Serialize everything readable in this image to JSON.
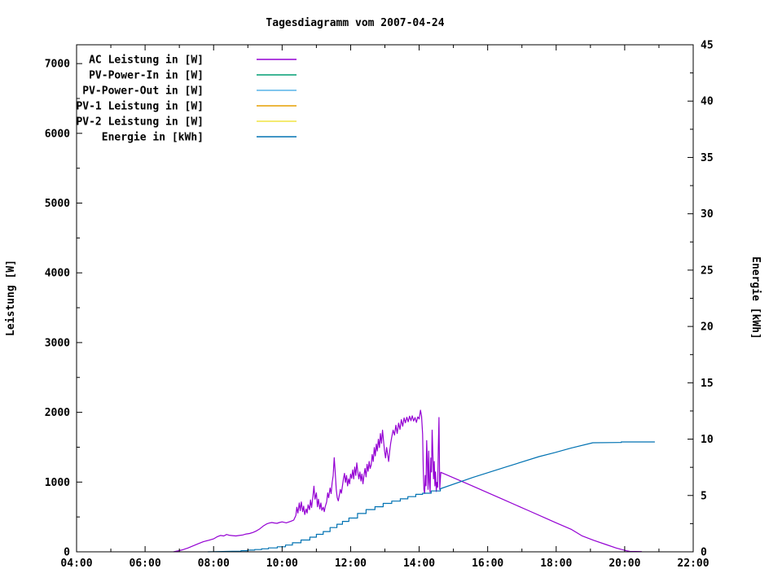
{
  "page": {
    "background": "#ffffff",
    "foreground": "#000000"
  },
  "chart_data": {
    "type": "line",
    "title": "Tagesdiagramm vom 2007-04-24",
    "x_axis": {
      "tick_labels": [
        "04:00",
        "06:00",
        "08:00",
        "10:00",
        "12:00",
        "14:00",
        "16:00",
        "18:00",
        "20:00",
        "22:00"
      ],
      "range_hours": [
        4,
        22
      ],
      "major_step_hours": 2,
      "minor_step_hours": 1,
      "grid": false
    },
    "y_left_axis": {
      "label": "Leistung [W]",
      "tick_labels": [
        "0",
        "1000",
        "2000",
        "3000",
        "4000",
        "5000",
        "6000",
        "7000"
      ],
      "tick_values": [
        0,
        1000,
        2000,
        3000,
        4000,
        5000,
        6000,
        7000
      ],
      "minor_step": 500,
      "range": [
        0,
        7270
      ]
    },
    "y_right_axis": {
      "label": "Energie [kWh]",
      "tick_labels": [
        "0",
        "5",
        "10",
        "15",
        "20",
        "25",
        "30",
        "35",
        "40",
        "45"
      ],
      "tick_values": [
        0,
        5,
        10,
        15,
        20,
        25,
        30,
        35,
        40,
        45
      ],
      "minor_step": 2.5,
      "range": [
        0,
        45
      ]
    },
    "legend_position": "top-left-inside",
    "series": [
      {
        "name": "AC Leistung in [W]",
        "color": "#9400d3",
        "axis": "left",
        "style": "line",
        "points": [
          [
            6.83,
            0
          ],
          [
            7.0,
            18
          ],
          [
            7.1,
            30
          ],
          [
            7.25,
            55
          ],
          [
            7.4,
            85
          ],
          [
            7.55,
            115
          ],
          [
            7.7,
            145
          ],
          [
            7.85,
            165
          ],
          [
            8.0,
            185
          ],
          [
            8.1,
            215
          ],
          [
            8.2,
            235
          ],
          [
            8.3,
            228
          ],
          [
            8.38,
            248
          ],
          [
            8.45,
            238
          ],
          [
            8.55,
            232
          ],
          [
            8.65,
            228
          ],
          [
            8.75,
            235
          ],
          [
            8.85,
            242
          ],
          [
            8.95,
            255
          ],
          [
            9.05,
            262
          ],
          [
            9.15,
            278
          ],
          [
            9.25,
            300
          ],
          [
            9.35,
            330
          ],
          [
            9.45,
            370
          ],
          [
            9.55,
            400
          ],
          [
            9.62,
            412
          ],
          [
            9.7,
            420
          ],
          [
            9.78,
            413
          ],
          [
            9.85,
            408
          ],
          [
            9.92,
            420
          ],
          [
            10.0,
            430
          ],
          [
            10.06,
            422
          ],
          [
            10.12,
            416
          ],
          [
            10.2,
            428
          ],
          [
            10.28,
            442
          ],
          [
            10.34,
            455
          ],
          [
            10.4,
            520
          ],
          [
            10.43,
            640
          ],
          [
            10.46,
            555
          ],
          [
            10.5,
            700
          ],
          [
            10.53,
            590
          ],
          [
            10.56,
            715
          ],
          [
            10.6,
            575
          ],
          [
            10.63,
            655
          ],
          [
            10.66,
            535
          ],
          [
            10.7,
            615
          ],
          [
            10.73,
            555
          ],
          [
            10.76,
            675
          ],
          [
            10.8,
            605
          ],
          [
            10.83,
            745
          ],
          [
            10.86,
            635
          ],
          [
            10.9,
            800
          ],
          [
            10.93,
            940
          ],
          [
            10.96,
            755
          ],
          [
            11.0,
            845
          ],
          [
            11.03,
            645
          ],
          [
            11.06,
            755
          ],
          [
            11.1,
            615
          ],
          [
            11.13,
            700
          ],
          [
            11.16,
            595
          ],
          [
            11.2,
            640
          ],
          [
            11.23,
            575
          ],
          [
            11.26,
            650
          ],
          [
            11.3,
            715
          ],
          [
            11.33,
            845
          ],
          [
            11.36,
            775
          ],
          [
            11.4,
            915
          ],
          [
            11.43,
            835
          ],
          [
            11.46,
            985
          ],
          [
            11.49,
            1090
          ],
          [
            11.52,
            1350
          ],
          [
            11.55,
            1145
          ],
          [
            11.58,
            895
          ],
          [
            11.61,
            775
          ],
          [
            11.64,
            730
          ],
          [
            11.67,
            815
          ],
          [
            11.7,
            895
          ],
          [
            11.73,
            840
          ],
          [
            11.76,
            945
          ],
          [
            11.79,
            1045
          ],
          [
            11.82,
            1125
          ],
          [
            11.85,
            995
          ],
          [
            11.88,
            1095
          ],
          [
            11.91,
            945
          ],
          [
            11.94,
            1045
          ],
          [
            11.97,
            975
          ],
          [
            12.0,
            1115
          ],
          [
            12.03,
            1055
          ],
          [
            12.06,
            1175
          ],
          [
            12.09,
            1045
          ],
          [
            12.12,
            1215
          ],
          [
            12.15,
            1095
          ],
          [
            12.18,
            1275
          ],
          [
            12.21,
            1145
          ],
          [
            12.24,
            1045
          ],
          [
            12.27,
            1145
          ],
          [
            12.3,
            1015
          ],
          [
            12.33,
            1115
          ],
          [
            12.36,
            975
          ],
          [
            12.39,
            1095
          ],
          [
            12.42,
            1195
          ],
          [
            12.45,
            1075
          ],
          [
            12.48,
            1255
          ],
          [
            12.51,
            1155
          ],
          [
            12.54,
            1295
          ],
          [
            12.57,
            1195
          ],
          [
            12.6,
            1245
          ],
          [
            12.63,
            1395
          ],
          [
            12.66,
            1295
          ],
          [
            12.69,
            1495
          ],
          [
            12.72,
            1375
          ],
          [
            12.75,
            1545
          ],
          [
            12.78,
            1445
          ],
          [
            12.81,
            1615
          ],
          [
            12.84,
            1495
          ],
          [
            12.87,
            1695
          ],
          [
            12.9,
            1555
          ],
          [
            12.93,
            1745
          ],
          [
            12.96,
            1595
          ],
          [
            12.99,
            1445
          ],
          [
            13.02,
            1345
          ],
          [
            13.05,
            1495
          ],
          [
            13.08,
            1395
          ],
          [
            13.11,
            1295
          ],
          [
            13.14,
            1445
          ],
          [
            13.17,
            1555
          ],
          [
            13.2,
            1645
          ],
          [
            13.24,
            1745
          ],
          [
            13.28,
            1675
          ],
          [
            13.32,
            1815
          ],
          [
            13.36,
            1698
          ],
          [
            13.4,
            1845
          ],
          [
            13.44,
            1755
          ],
          [
            13.48,
            1895
          ],
          [
            13.52,
            1800
          ],
          [
            13.56,
            1920
          ],
          [
            13.6,
            1850
          ],
          [
            13.64,
            1930
          ],
          [
            13.68,
            1865
          ],
          [
            13.72,
            1945
          ],
          [
            13.76,
            1880
          ],
          [
            13.8,
            1950
          ],
          [
            13.84,
            1875
          ],
          [
            13.88,
            1925
          ],
          [
            13.92,
            1855
          ],
          [
            13.96,
            1935
          ],
          [
            14.0,
            1905
          ],
          [
            14.04,
            2030
          ],
          [
            14.07,
            1945
          ],
          [
            14.1,
            1690
          ],
          [
            14.12,
            1190
          ],
          [
            14.14,
            895
          ],
          [
            14.16,
            835
          ],
          [
            14.18,
            1095
          ],
          [
            14.2,
            945
          ],
          [
            14.22,
            1595
          ],
          [
            14.24,
            1295
          ],
          [
            14.26,
            895
          ],
          [
            14.28,
            1445
          ],
          [
            14.3,
            995
          ],
          [
            14.32,
            855
          ],
          [
            14.34,
            1345
          ],
          [
            14.36,
            1145
          ],
          [
            14.38,
            1745
          ],
          [
            14.4,
            1395
          ],
          [
            14.42,
            1045
          ],
          [
            14.44,
            1295
          ],
          [
            14.46,
            945
          ],
          [
            14.48,
            1145
          ],
          [
            14.5,
            865
          ],
          [
            14.52,
            995
          ],
          [
            14.54,
            925
          ],
          [
            14.56,
            1495
          ],
          [
            14.58,
            1925
          ],
          [
            14.6,
            895
          ],
          [
            14.63,
            1140
          ],
          [
            15.5,
            956
          ],
          [
            16.4,
            762
          ],
          [
            17.2,
            589
          ],
          [
            18.0,
            416
          ],
          [
            18.45,
            320
          ],
          [
            18.75,
            230
          ],
          [
            19.1,
            165
          ],
          [
            19.45,
            105
          ],
          [
            19.75,
            55
          ],
          [
            20.05,
            15
          ],
          [
            20.15,
            6
          ],
          [
            20.5,
            3
          ]
        ]
      },
      {
        "name": "PV-Power-In in [W]",
        "color": "#009e73",
        "axis": "left",
        "style": "line",
        "points": []
      },
      {
        "name": "PV-Power-Out in [W]",
        "color": "#56b4e9",
        "axis": "left",
        "style": "line",
        "points": []
      },
      {
        "name": "PV-1 Leistung in [W]",
        "color": "#e69f00",
        "axis": "left",
        "style": "line",
        "points": []
      },
      {
        "name": "PV-2 Leistung in [W]",
        "color": "#f0e442",
        "axis": "left",
        "style": "line",
        "points": []
      },
      {
        "name": "Energie in [kWh]",
        "color": "#0072b2",
        "axis": "right",
        "style": "steps",
        "points": [
          [
            7.83,
            0
          ],
          [
            8.55,
            0.05
          ],
          [
            8.8,
            0.1
          ],
          [
            9.0,
            0.15
          ],
          [
            9.2,
            0.2
          ],
          [
            9.4,
            0.27
          ],
          [
            9.6,
            0.35
          ],
          [
            9.86,
            0.45
          ],
          [
            10.1,
            0.6
          ],
          [
            10.3,
            0.8
          ],
          [
            10.55,
            1.05
          ],
          [
            10.81,
            1.3
          ],
          [
            11.0,
            1.55
          ],
          [
            11.2,
            1.8
          ],
          [
            11.4,
            2.15
          ],
          [
            11.6,
            2.45
          ],
          [
            11.76,
            2.7
          ],
          [
            11.95,
            3.0
          ],
          [
            12.2,
            3.4
          ],
          [
            12.45,
            3.75
          ],
          [
            12.71,
            4.0
          ],
          [
            12.95,
            4.3
          ],
          [
            13.2,
            4.5
          ],
          [
            13.45,
            4.7
          ],
          [
            13.67,
            4.9
          ],
          [
            13.9,
            5.1
          ],
          [
            14.1,
            5.2
          ],
          [
            14.35,
            5.4
          ],
          [
            14.62,
            5.6
          ],
          [
            15.57,
            6.6
          ],
          [
            16.5,
            7.5
          ],
          [
            17.5,
            8.45
          ],
          [
            17.95,
            8.8
          ],
          [
            18.43,
            9.2
          ],
          [
            19.07,
            9.68
          ],
          [
            19.81,
            9.7
          ],
          [
            19.9,
            9.75
          ],
          [
            20.88,
            9.75
          ]
        ]
      }
    ]
  }
}
